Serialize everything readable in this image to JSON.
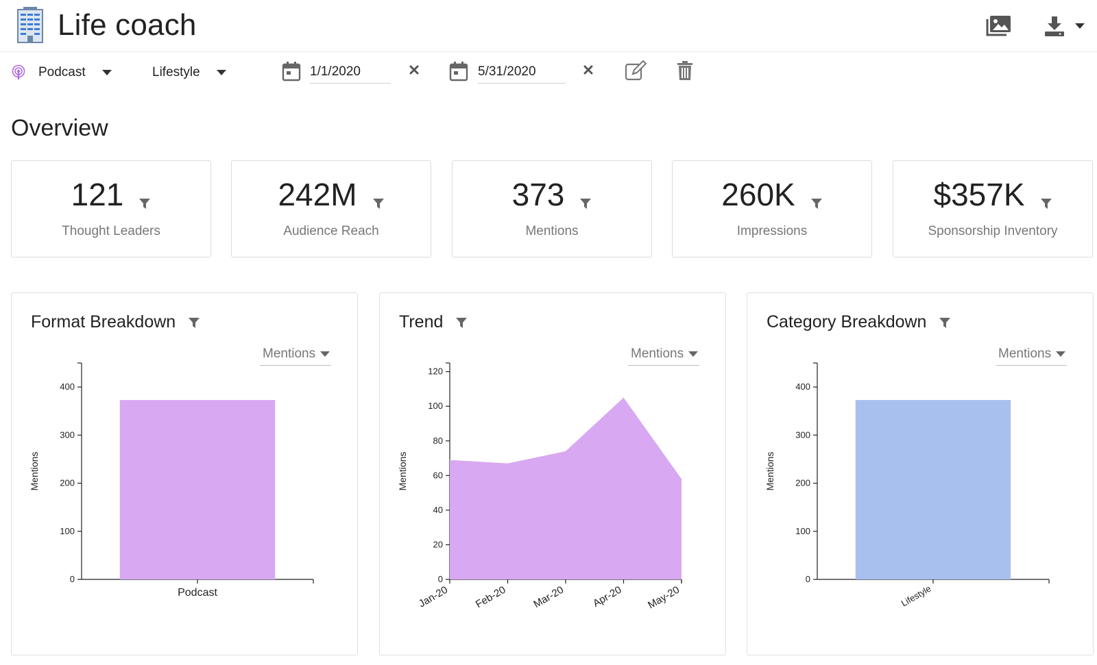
{
  "app": {
    "title": "Life coach",
    "logo_icon": "building-icon"
  },
  "header_actions": [
    {
      "name": "image-gallery-button",
      "icon": "images-icon"
    },
    {
      "name": "download-button",
      "icon": "download-icon"
    }
  ],
  "filters": {
    "format": {
      "value": "Podcast",
      "icon": "podcast-icon",
      "icon_color": "#b36be8"
    },
    "category": {
      "value": "Lifestyle"
    },
    "start_date": {
      "value": "1/1/2020"
    },
    "end_date": {
      "value": "5/31/2020"
    }
  },
  "overview": {
    "title": "Overview",
    "kpis": [
      {
        "value": "121",
        "label": "Thought Leaders"
      },
      {
        "value": "242M",
        "label": "Audience Reach"
      },
      {
        "value": "373",
        "label": "Mentions"
      },
      {
        "value": "260K",
        "label": "Impressions"
      },
      {
        "value": "$357K",
        "label": "Sponsorship Inventory"
      }
    ]
  },
  "panels": [
    {
      "title": "Format Breakdown",
      "metric": "Mentions"
    },
    {
      "title": "Trend",
      "metric": "Mentions"
    },
    {
      "title": "Category Breakdown",
      "metric": "Mentions"
    }
  ],
  "chart_data": [
    {
      "type": "bar",
      "categories": [
        "Podcast"
      ],
      "values": [
        373
      ],
      "ylabel": "Mentions",
      "ylim": [
        0,
        450
      ],
      "yticks": [
        0,
        100,
        200,
        300,
        400
      ],
      "color": "#d8a8f2"
    },
    {
      "type": "area",
      "x": [
        "Jan-20",
        "Feb-20",
        "Mar-20",
        "Apr-20",
        "May-20"
      ],
      "values": [
        69,
        67,
        74,
        105,
        58
      ],
      "ylabel": "Mentions",
      "ylim": [
        0,
        125
      ],
      "yticks": [
        0,
        20,
        40,
        60,
        80,
        100,
        120
      ],
      "color": "#d8a8f2"
    },
    {
      "type": "bar",
      "categories": [
        "Lifestyle"
      ],
      "values": [
        373
      ],
      "ylabel": "Mentions",
      "ylim": [
        0,
        450
      ],
      "yticks": [
        0,
        100,
        200,
        300,
        400
      ],
      "color": "#a8c0ee"
    }
  ]
}
